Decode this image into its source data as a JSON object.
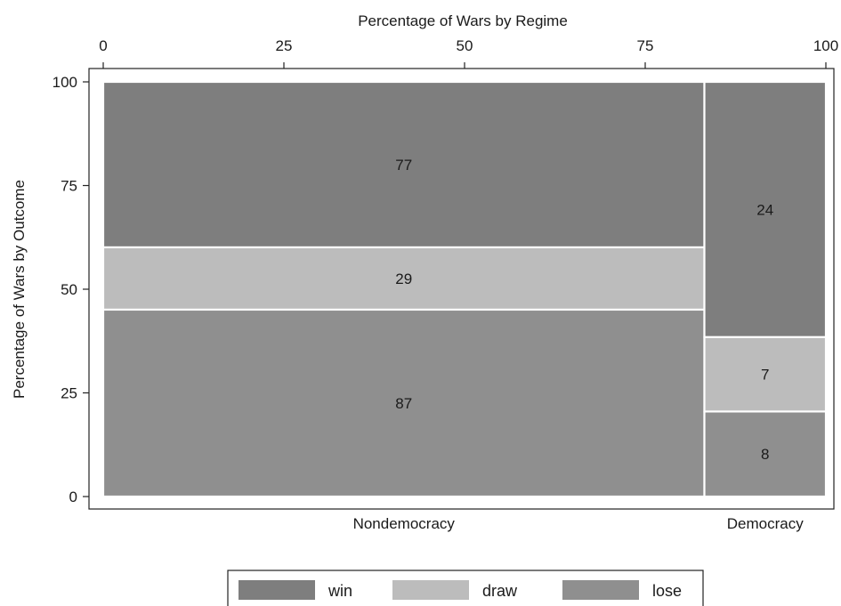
{
  "chart_data": {
    "type": "mosaic",
    "title": "",
    "top_axis_label": "Percentage of Wars by Regime",
    "ylabel": "Percentage of Wars by Outcome",
    "xlim": [
      0,
      100
    ],
    "ylim": [
      0,
      100
    ],
    "x_ticks": [
      "0",
      "25",
      "50",
      "75",
      "100"
    ],
    "y_ticks": [
      "0",
      "25",
      "50",
      "75",
      "100"
    ],
    "grid": false,
    "categories": [
      "Nondemocracy",
      "Democracy"
    ],
    "series": [
      {
        "name": "win",
        "values": [
          77,
          24
        ]
      },
      {
        "name": "draw",
        "values": [
          29,
          7
        ]
      },
      {
        "name": "lose",
        "values": [
          87,
          8
        ]
      }
    ],
    "legend_position": "bottom",
    "colors": {
      "win": "#7e7e7e",
      "draw": "#bcbcbc",
      "lose": "#8f8f8f"
    }
  }
}
